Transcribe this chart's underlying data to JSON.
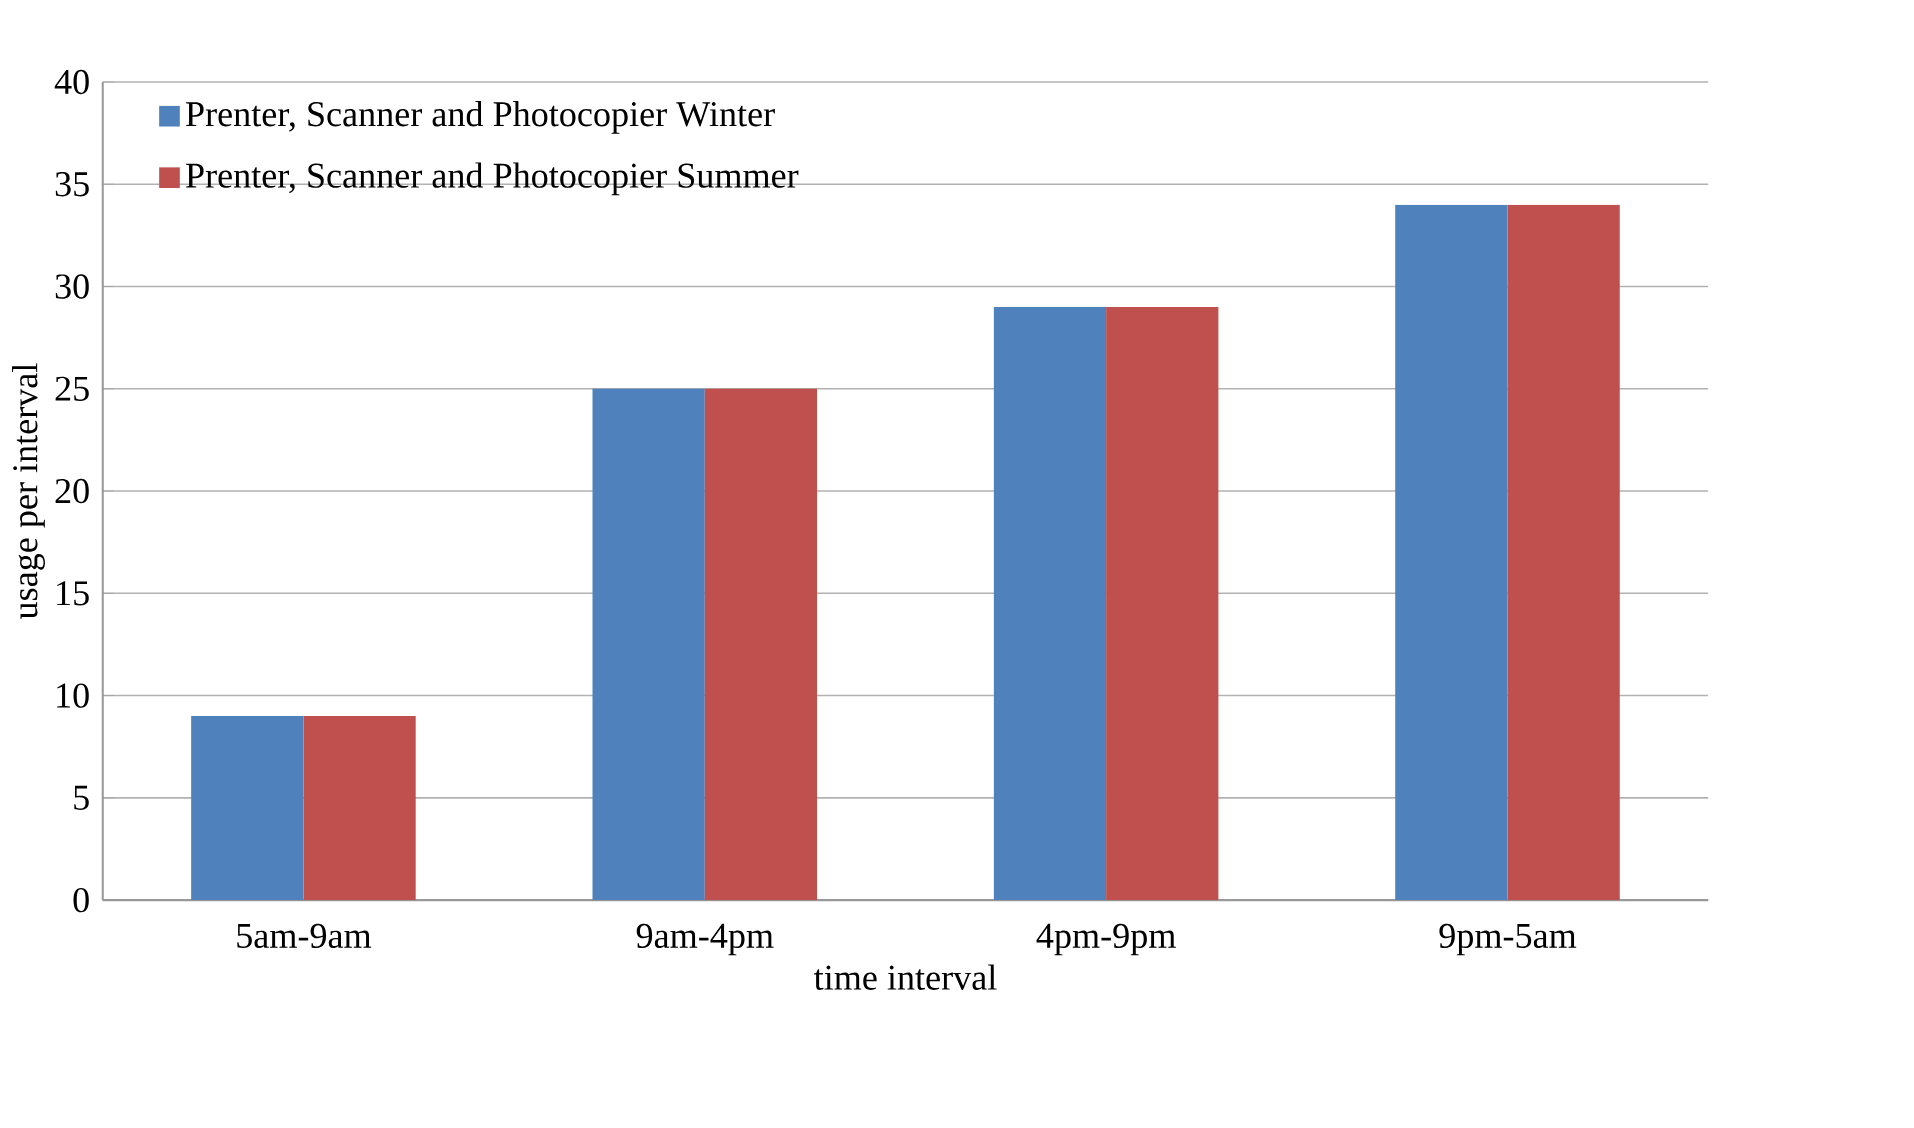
{
  "chart_data": {
    "type": "bar",
    "xlabel": "time interval",
    "ylabel": "usage per interval",
    "categories": [
      "5am-9am",
      "9am-4pm",
      "4pm-9pm",
      "9pm-5am"
    ],
    "series": [
      {
        "name": "Prenter, Scanner and Photocopier Winter",
        "color": "#4f81bd",
        "values": [
          9,
          25,
          29,
          34
        ]
      },
      {
        "name": "Prenter, Scanner and Photocopier Summer",
        "color": "#c0504d",
        "values": [
          9,
          25,
          29,
          34
        ]
      }
    ],
    "ylim": [
      0,
      40
    ],
    "yticks": [
      0,
      5,
      10,
      15,
      20,
      25,
      30,
      35,
      40
    ],
    "grid": "y",
    "legend": "top left"
  }
}
